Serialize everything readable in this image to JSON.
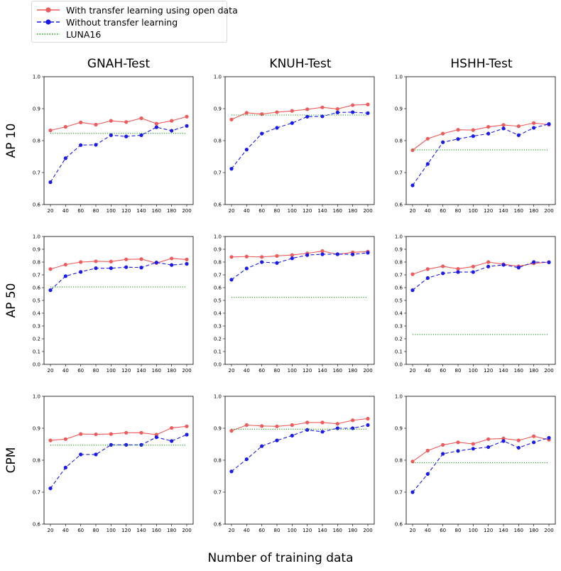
{
  "legend": {
    "items": [
      {
        "label": "With transfer learning using open data",
        "color": "#f15a5a",
        "style": "solid",
        "marker": true
      },
      {
        "label": "Without transfer learning",
        "color": "#1a1aee",
        "style": "dashed",
        "marker": true
      },
      {
        "label": "LUNA16",
        "color": "#1a9a1a",
        "style": "dotted",
        "marker": false
      }
    ]
  },
  "labels": {
    "columns": [
      "GNAH-Test",
      "KNUH-Test",
      "HSHH-Test"
    ],
    "rows": [
      "AP 10",
      "AP 50",
      "CPM"
    ],
    "xlabel": "Number of training data"
  },
  "chart_data": [
    {
      "type": "line",
      "panel": "AP 10 / GNAH-Test",
      "x": [
        20,
        40,
        60,
        80,
        100,
        120,
        140,
        160,
        180,
        200
      ],
      "ylim": [
        0.6,
        1.0
      ],
      "yticks": [
        0.6,
        0.7,
        0.8,
        0.9,
        1.0
      ],
      "series": [
        {
          "name": "With transfer learning using open data",
          "values": [
            0.832,
            0.843,
            0.857,
            0.85,
            0.862,
            0.858,
            0.87,
            0.853,
            0.862,
            0.875
          ]
        },
        {
          "name": "Without transfer learning",
          "values": [
            0.67,
            0.745,
            0.786,
            0.787,
            0.817,
            0.813,
            0.817,
            0.842,
            0.831,
            0.846
          ]
        },
        {
          "name": "LUNA16",
          "values": [
            0.823,
            0.823,
            0.823,
            0.823,
            0.823,
            0.823,
            0.823,
            0.823,
            0.823,
            0.823
          ]
        }
      ]
    },
    {
      "type": "line",
      "panel": "AP 10 / KNUH-Test",
      "x": [
        20,
        40,
        60,
        80,
        100,
        120,
        140,
        160,
        180,
        200
      ],
      "ylim": [
        0.6,
        1.0
      ],
      "yticks": [
        0.6,
        0.7,
        0.8,
        0.9,
        1.0
      ],
      "series": [
        {
          "name": "With transfer learning using open data",
          "values": [
            0.866,
            0.887,
            0.883,
            0.889,
            0.893,
            0.898,
            0.904,
            0.899,
            0.911,
            0.913
          ]
        },
        {
          "name": "Without transfer learning",
          "values": [
            0.712,
            0.772,
            0.822,
            0.84,
            0.855,
            0.875,
            0.876,
            0.888,
            0.889,
            0.886
          ]
        },
        {
          "name": "LUNA16",
          "values": [
            0.88,
            0.88,
            0.88,
            0.88,
            0.88,
            0.88,
            0.88,
            0.88,
            0.88,
            0.88
          ]
        }
      ]
    },
    {
      "type": "line",
      "panel": "AP 10 / HSHH-Test",
      "x": [
        20,
        40,
        60,
        80,
        100,
        120,
        140,
        160,
        180,
        200
      ],
      "ylim": [
        0.6,
        1.0
      ],
      "yticks": [
        0.6,
        0.7,
        0.8,
        0.9,
        1.0
      ],
      "series": [
        {
          "name": "With transfer learning using open data",
          "values": [
            0.77,
            0.806,
            0.822,
            0.834,
            0.833,
            0.843,
            0.849,
            0.845,
            0.855,
            0.85
          ]
        },
        {
          "name": "Without transfer learning",
          "values": [
            0.66,
            0.727,
            0.795,
            0.805,
            0.814,
            0.822,
            0.838,
            0.817,
            0.84,
            0.852
          ]
        },
        {
          "name": "LUNA16",
          "values": [
            0.771,
            0.771,
            0.771,
            0.771,
            0.771,
            0.771,
            0.771,
            0.771,
            0.771,
            0.771
          ]
        }
      ]
    },
    {
      "type": "line",
      "panel": "AP 50 / GNAH-Test",
      "x": [
        20,
        40,
        60,
        80,
        100,
        120,
        140,
        160,
        180,
        200
      ],
      "ylim": [
        0.0,
        1.0
      ],
      "yticks": [
        0.0,
        0.1,
        0.2,
        0.3,
        0.4,
        0.5,
        0.6,
        0.7,
        0.8,
        0.9,
        1.0
      ],
      "series": [
        {
          "name": "With transfer learning using open data",
          "values": [
            0.745,
            0.78,
            0.8,
            0.806,
            0.804,
            0.821,
            0.823,
            0.792,
            0.828,
            0.82
          ]
        },
        {
          "name": "Without transfer learning",
          "values": [
            0.58,
            0.69,
            0.723,
            0.752,
            0.752,
            0.76,
            0.757,
            0.797,
            0.777,
            0.786
          ]
        },
        {
          "name": "LUNA16",
          "values": [
            0.605,
            0.605,
            0.605,
            0.605,
            0.605,
            0.605,
            0.605,
            0.605,
            0.605,
            0.605
          ]
        }
      ]
    },
    {
      "type": "line",
      "panel": "AP 50 / KNUH-Test",
      "x": [
        20,
        40,
        60,
        80,
        100,
        120,
        140,
        160,
        180,
        200
      ],
      "ylim": [
        0.0,
        1.0
      ],
      "yticks": [
        0.0,
        0.1,
        0.2,
        0.3,
        0.4,
        0.5,
        0.6,
        0.7,
        0.8,
        0.9,
        1.0
      ],
      "series": [
        {
          "name": "With transfer learning using open data",
          "values": [
            0.84,
            0.843,
            0.84,
            0.848,
            0.855,
            0.868,
            0.886,
            0.86,
            0.876,
            0.882
          ]
        },
        {
          "name": "Without transfer learning",
          "values": [
            0.662,
            0.75,
            0.8,
            0.793,
            0.829,
            0.855,
            0.861,
            0.862,
            0.86,
            0.873
          ]
        },
        {
          "name": "LUNA16",
          "values": [
            0.524,
            0.524,
            0.524,
            0.524,
            0.524,
            0.524,
            0.524,
            0.524,
            0.524,
            0.524
          ]
        }
      ]
    },
    {
      "type": "line",
      "panel": "AP 50 / HSHH-Test",
      "x": [
        20,
        40,
        60,
        80,
        100,
        120,
        140,
        160,
        180,
        200
      ],
      "ylim": [
        0.0,
        1.0
      ],
      "yticks": [
        0.0,
        0.1,
        0.2,
        0.3,
        0.4,
        0.5,
        0.6,
        0.7,
        0.8,
        0.9,
        1.0
      ],
      "series": [
        {
          "name": "With transfer learning using open data",
          "values": [
            0.705,
            0.745,
            0.767,
            0.747,
            0.765,
            0.8,
            0.783,
            0.767,
            0.79,
            0.8
          ]
        },
        {
          "name": "Without transfer learning",
          "values": [
            0.58,
            0.675,
            0.712,
            0.722,
            0.722,
            0.765,
            0.778,
            0.757,
            0.8,
            0.798
          ]
        },
        {
          "name": "LUNA16",
          "values": [
            0.233,
            0.233,
            0.233,
            0.233,
            0.233,
            0.233,
            0.233,
            0.233,
            0.233,
            0.233
          ]
        }
      ]
    },
    {
      "type": "line",
      "panel": "CPM / GNAH-Test",
      "x": [
        20,
        40,
        60,
        80,
        100,
        120,
        140,
        160,
        180,
        200
      ],
      "ylim": [
        0.6,
        1.0
      ],
      "yticks": [
        0.6,
        0.7,
        0.8,
        0.9,
        1.0
      ],
      "series": [
        {
          "name": "With transfer learning using open data",
          "values": [
            0.862,
            0.866,
            0.882,
            0.881,
            0.882,
            0.886,
            0.886,
            0.88,
            0.901,
            0.906
          ]
        },
        {
          "name": "Without transfer learning",
          "values": [
            0.712,
            0.777,
            0.818,
            0.818,
            0.848,
            0.848,
            0.848,
            0.872,
            0.86,
            0.88
          ]
        },
        {
          "name": "LUNA16",
          "values": [
            0.847,
            0.847,
            0.847,
            0.847,
            0.847,
            0.847,
            0.847,
            0.847,
            0.847,
            0.847
          ]
        }
      ]
    },
    {
      "type": "line",
      "panel": "CPM / KNUH-Test",
      "x": [
        20,
        40,
        60,
        80,
        100,
        120,
        140,
        160,
        180,
        200
      ],
      "ylim": [
        0.6,
        1.0
      ],
      "yticks": [
        0.6,
        0.7,
        0.8,
        0.9,
        1.0
      ],
      "series": [
        {
          "name": "With transfer learning using open data",
          "values": [
            0.892,
            0.91,
            0.907,
            0.906,
            0.91,
            0.918,
            0.918,
            0.914,
            0.925,
            0.93
          ]
        },
        {
          "name": "Without transfer learning",
          "values": [
            0.765,
            0.803,
            0.844,
            0.862,
            0.877,
            0.895,
            0.889,
            0.9,
            0.9,
            0.91
          ]
        },
        {
          "name": "LUNA16",
          "values": [
            0.897,
            0.897,
            0.897,
            0.897,
            0.897,
            0.897,
            0.897,
            0.897,
            0.897,
            0.897
          ]
        }
      ]
    },
    {
      "type": "line",
      "panel": "CPM / HSHH-Test",
      "x": [
        20,
        40,
        60,
        80,
        100,
        120,
        140,
        160,
        180,
        200
      ],
      "ylim": [
        0.6,
        1.0
      ],
      "yticks": [
        0.6,
        0.7,
        0.8,
        0.9,
        1.0
      ],
      "series": [
        {
          "name": "With transfer learning using open data",
          "values": [
            0.796,
            0.83,
            0.848,
            0.856,
            0.851,
            0.866,
            0.868,
            0.862,
            0.875,
            0.864
          ]
        },
        {
          "name": "Without transfer learning",
          "values": [
            0.7,
            0.757,
            0.82,
            0.829,
            0.836,
            0.841,
            0.86,
            0.839,
            0.856,
            0.87
          ]
        },
        {
          "name": "LUNA16",
          "values": [
            0.792,
            0.792,
            0.792,
            0.792,
            0.792,
            0.792,
            0.792,
            0.792,
            0.792,
            0.792
          ]
        }
      ]
    }
  ]
}
